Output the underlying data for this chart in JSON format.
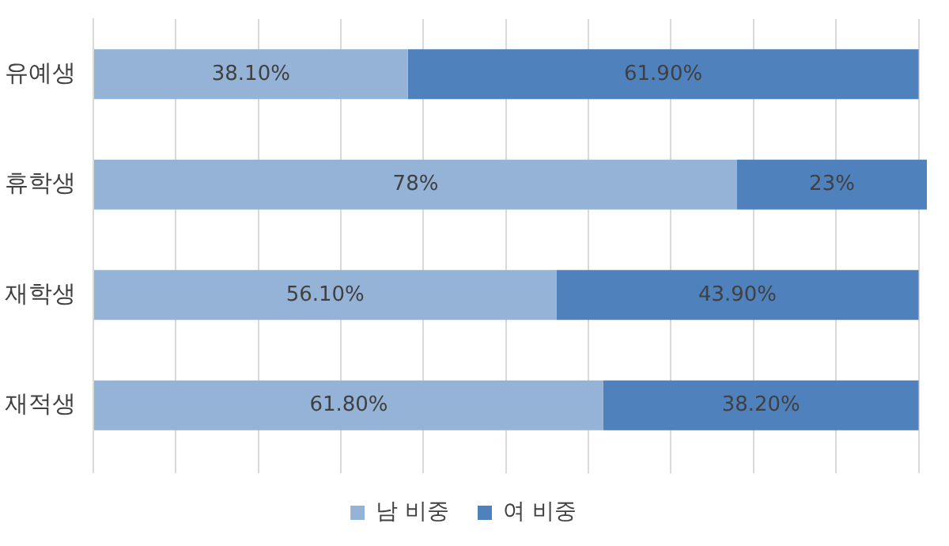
{
  "chart_data": {
    "type": "bar",
    "orientation": "horizontal",
    "stacked": true,
    "categories": [
      "유예생",
      "휴학생",
      "재학생",
      "재적생"
    ],
    "series": [
      {
        "name": "남 비중",
        "color": "#95b3d7",
        "values": [
          38.1,
          78,
          56.1,
          61.8
        ],
        "value_labels": [
          "38.10%",
          "78%",
          "56.10%",
          "61.80%"
        ]
      },
      {
        "name": "여 비중",
        "color": "#4f81bd",
        "values": [
          61.9,
          23,
          43.9,
          38.2
        ],
        "value_labels": [
          "61.90%",
          "23%",
          "43.90%",
          "38.20%"
        ]
      }
    ],
    "xlim": [
      0,
      101
    ],
    "xticks": [
      {
        "value": 0,
        "label": null
      },
      {
        "value": 10,
        "label": null
      },
      {
        "value": 20,
        "label": null
      },
      {
        "value": 30,
        "label": null
      },
      {
        "value": 40,
        "label": null
      },
      {
        "value": 50,
        "label": null
      },
      {
        "value": 60,
        "label": null
      },
      {
        "value": 70,
        "label": null
      },
      {
        "value": 80,
        "label": null
      },
      {
        "value": 90,
        "label": null
      },
      {
        "value": 100,
        "label": null
      }
    ],
    "tick_labels": "y",
    "grid": "x",
    "legend": "bottom"
  }
}
